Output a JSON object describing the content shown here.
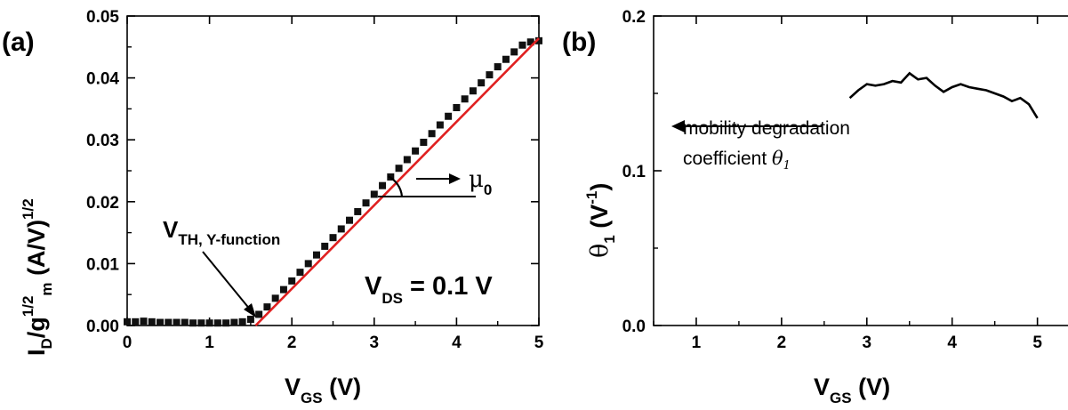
{
  "panel_labels": [
    "(a)",
    "(b)"
  ],
  "chart_data": [
    {
      "type": "scatter",
      "panel": "(a)",
      "xlabel": {
        "main": "V",
        "sub": "GS",
        "unit": " (V)"
      },
      "ylabel": {
        "main": "I",
        "sub1": "D",
        "mid": "/g",
        "sup1": "1/2",
        "sub2": "m",
        "unit": " (A/V)",
        "sup2": "1/2"
      },
      "xlim": [
        0,
        5
      ],
      "ylim": [
        0,
        0.05
      ],
      "xticks": [
        "0",
        "1",
        "2",
        "3",
        "4",
        "5"
      ],
      "yticks": [
        "0.00",
        "0.01",
        "0.02",
        "0.03",
        "0.04",
        "0.05"
      ],
      "grid": false,
      "series": [
        {
          "marker": "square",
          "color": "#111111",
          "x": [
            0.0,
            0.1,
            0.2,
            0.3,
            0.4,
            0.5,
            0.6,
            0.7,
            0.8,
            0.9,
            1.0,
            1.1,
            1.2,
            1.3,
            1.4,
            1.5,
            1.6,
            1.7,
            1.8,
            1.9,
            2.0,
            2.1,
            2.2,
            2.3,
            2.4,
            2.5,
            2.6,
            2.7,
            2.8,
            2.9,
            3.0,
            3.1,
            3.2,
            3.3,
            3.4,
            3.5,
            3.6,
            3.7,
            3.8,
            3.9,
            4.0,
            4.1,
            4.2,
            4.3,
            4.4,
            4.5,
            4.6,
            4.7,
            4.8,
            4.9,
            5.0
          ],
          "y": [
            0.0006,
            0.0006,
            0.0007,
            0.0006,
            0.0005,
            0.0005,
            0.0005,
            0.0005,
            0.0004,
            0.0004,
            0.0004,
            0.0004,
            0.0004,
            0.0005,
            0.0006,
            0.001,
            0.0018,
            0.003,
            0.0044,
            0.0058,
            0.0072,
            0.0086,
            0.01,
            0.0114,
            0.0128,
            0.0142,
            0.0156,
            0.017,
            0.0184,
            0.0198,
            0.0212,
            0.0226,
            0.024,
            0.0254,
            0.0268,
            0.0282,
            0.0296,
            0.031,
            0.0324,
            0.0338,
            0.0352,
            0.0366,
            0.0379,
            0.0392,
            0.0405,
            0.0418,
            0.043,
            0.0442,
            0.0453,
            0.0458,
            0.046
          ]
        },
        {
          "type": "line",
          "color": "#e02020",
          "x": [
            1.56,
            5.0
          ],
          "y": [
            0.0,
            0.0464
          ]
        }
      ],
      "annotations": {
        "vth": {
          "main": "V",
          "sub": "TH, Y-function"
        },
        "mu": {
          "main": "μ",
          "sub": "0"
        },
        "vds": {
          "main": "V",
          "sub": "DS",
          "rest": " = 0.1 V"
        }
      }
    },
    {
      "type": "line",
      "panel": "(b)",
      "xlabel": {
        "main": "V",
        "sub": "GS",
        "unit": " (V)"
      },
      "ylabel": {
        "main": "θ",
        "sub": "1",
        "unit": " (V",
        "sup": "-1",
        "close": ")"
      },
      "xlim": [
        0.5,
        5.4
      ],
      "ylim": [
        0,
        0.2
      ],
      "xticks": [
        "1",
        "2",
        "3",
        "4",
        "5"
      ],
      "yticks": [
        "0.0",
        "0.1",
        "0.2"
      ],
      "grid": false,
      "series": [
        {
          "color": "#000000",
          "x": [
            2.8,
            2.9,
            3.0,
            3.1,
            3.2,
            3.3,
            3.4,
            3.5,
            3.6,
            3.7,
            3.8,
            3.9,
            4.0,
            4.1,
            4.2,
            4.3,
            4.4,
            4.5,
            4.6,
            4.7,
            4.8,
            4.9,
            5.0
          ],
          "y": [
            0.147,
            0.152,
            0.156,
            0.155,
            0.156,
            0.158,
            0.157,
            0.163,
            0.159,
            0.16,
            0.155,
            0.151,
            0.154,
            0.156,
            0.154,
            0.153,
            0.152,
            0.15,
            0.148,
            0.145,
            0.147,
            0.143,
            0.134
          ]
        }
      ],
      "annotations": {
        "line1": "mobility degradation",
        "line2": "coefficient ",
        "theta": "θ",
        "theta_sub": "1"
      }
    }
  ]
}
